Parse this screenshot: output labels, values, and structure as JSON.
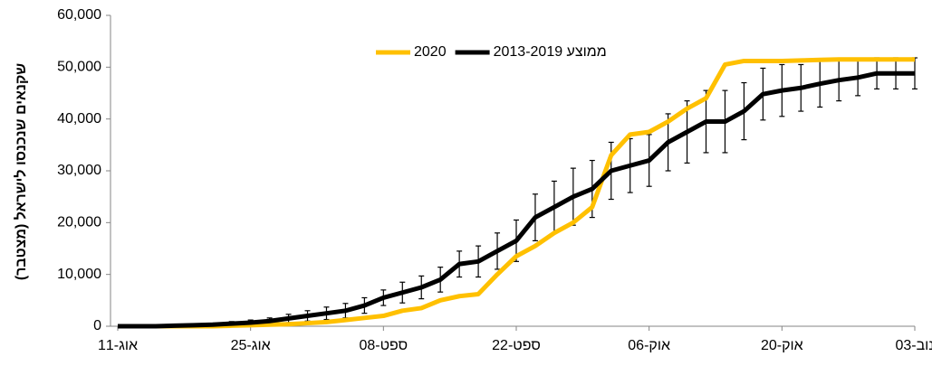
{
  "chart_data": {
    "type": "line",
    "y_axis_label": "שקנאים שנכנסו לישראל (מצטבר)",
    "categories": [
      "11-אוג",
      null,
      null,
      null,
      null,
      null,
      null,
      "25-אוג",
      null,
      null,
      null,
      null,
      null,
      null,
      "08-ספט",
      null,
      null,
      null,
      null,
      null,
      null,
      "22-ספט",
      null,
      null,
      null,
      null,
      null,
      null,
      "06-אוק",
      null,
      null,
      null,
      null,
      null,
      null,
      "20-אוק",
      null,
      null,
      null,
      null,
      null,
      null,
      "03-נוב"
    ],
    "series": [
      {
        "name": "2020",
        "color": "#ffc000",
        "values": [
          0,
          0,
          0,
          0,
          0,
          0,
          100,
          200,
          300,
          400,
          600,
          800,
          1200,
          1600,
          2000,
          3000,
          3500,
          5000,
          5800,
          6200,
          10000,
          13500,
          15500,
          18000,
          20000,
          23000,
          33000,
          37000,
          37500,
          39500,
          42000,
          44000,
          50500,
          51200,
          51200,
          51200,
          51300,
          51400,
          51500,
          51500,
          51500,
          51500,
          51500
        ]
      },
      {
        "name": "ממוצע 2013-2019",
        "color": "#000000",
        "values": [
          0,
          0,
          0,
          100,
          200,
          300,
          500,
          700,
          1000,
          1500,
          2000,
          2500,
          3000,
          4000,
          5500,
          6500,
          7500,
          9000,
          12000,
          12500,
          14500,
          16500,
          21000,
          23000,
          25000,
          26500,
          30000,
          31000,
          32000,
          35500,
          37500,
          39500,
          39500,
          41500,
          44800,
          45500,
          46000,
          46800,
          47500,
          48000,
          48800,
          48800,
          48800
        ],
        "errors": [
          0,
          0,
          0,
          100,
          200,
          300,
          400,
          500,
          600,
          800,
          1000,
          1200,
          1400,
          1500,
          1500,
          2000,
          2200,
          2400,
          2500,
          3000,
          3500,
          4000,
          4500,
          5000,
          5500,
          5500,
          5500,
          5200,
          5000,
          5500,
          6000,
          6000,
          6000,
          5500,
          5000,
          5000,
          4500,
          4500,
          4000,
          3500,
          3000,
          3000,
          3000
        ]
      }
    ],
    "ylim": [
      0,
      60000
    ],
    "yticks": [
      {
        "value": 0,
        "label": "0"
      },
      {
        "value": 10000,
        "label": "10,000"
      },
      {
        "value": 20000,
        "label": "20,000"
      },
      {
        "value": 30000,
        "label": "30,000"
      },
      {
        "value": 40000,
        "label": "40,000"
      },
      {
        "value": 50000,
        "label": "50,000"
      },
      {
        "value": 60000,
        "label": "60,000"
      }
    ],
    "legend": "top"
  }
}
